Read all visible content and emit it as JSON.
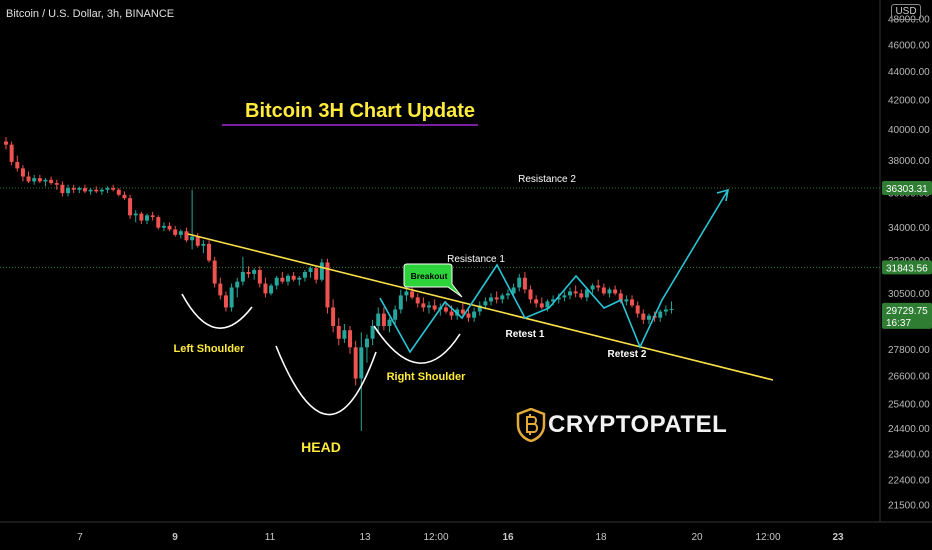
{
  "header": {
    "symbol": "Bitcoin / U.S. Dollar, 3h, BINANCE",
    "currency": "USD"
  },
  "overlay": {
    "title": "Bitcoin 3H Chart Update",
    "brand": "CRYPTOPATEL"
  },
  "colors": {
    "background": "#000000",
    "up": "#26a69a",
    "down": "#ef5350",
    "trendline": "#f9e04b",
    "zigzag": "#29c5d6",
    "resistance": "#2e7d32",
    "current_price_tag": "#2e7d32",
    "title": "#ffeb3b",
    "underline": "#7b1fa2"
  },
  "chart_data": {
    "type": "candlestick",
    "y_axis": {
      "ticks": [
        "21500.00",
        "22400.00",
        "23400.00",
        "24400.00",
        "25400.00",
        "26600.00",
        "27800.00",
        "29100.00",
        "30500.00",
        "32200.00",
        "34000.00",
        "36000.00",
        "38000.00",
        "40000.00",
        "42000.00",
        "44000.00",
        "46000.00",
        "48000.00"
      ],
      "scale": "log",
      "range": [
        20500,
        49000
      ]
    },
    "x_axis": {
      "ticks": [
        "7",
        "9",
        "11",
        "13",
        "12:00",
        "16",
        "18",
        "20",
        "12:00",
        "23"
      ],
      "bold_ticks": [
        "9",
        "16",
        "23"
      ]
    },
    "price_tags": [
      {
        "label": "36303.31",
        "value": 36303.31,
        "style": "resistance"
      },
      {
        "label": "31843.56",
        "value": 31843.56,
        "style": "resistance"
      },
      {
        "label": "29729.75",
        "sublabel": "16:37",
        "value": 29729.75,
        "style": "current"
      }
    ],
    "horizontal_levels": [
      {
        "label": "Resistance 2",
        "value": 36303.31
      },
      {
        "label": "Resistance 1",
        "value": 31843.56
      }
    ],
    "annotations": {
      "left_shoulder": "Left Shoulder",
      "head": "HEAD",
      "right_shoulder": "Right Shoulder",
      "breakout": "Breakout",
      "resistance1": "Resistance 1",
      "resistance2": "Resistance 2",
      "retest1": "Retest 1",
      "retest2": "Retest 2"
    },
    "candles": [
      {
        "o": 39200,
        "h": 39500,
        "l": 38700,
        "c": 39000
      },
      {
        "o": 39000,
        "h": 39200,
        "l": 37700,
        "c": 37900
      },
      {
        "o": 37900,
        "h": 38300,
        "l": 37300,
        "c": 37500
      },
      {
        "o": 37500,
        "h": 37700,
        "l": 36700,
        "c": 37000
      },
      {
        "o": 37000,
        "h": 37300,
        "l": 36600,
        "c": 36700
      },
      {
        "o": 36700,
        "h": 37100,
        "l": 36500,
        "c": 36900
      },
      {
        "o": 36900,
        "h": 37100,
        "l": 36600,
        "c": 36700
      },
      {
        "o": 36700,
        "h": 36900,
        "l": 36400,
        "c": 36800
      },
      {
        "o": 36800,
        "h": 37000,
        "l": 36500,
        "c": 36600
      },
      {
        "o": 36600,
        "h": 36800,
        "l": 36200,
        "c": 36500
      },
      {
        "o": 36500,
        "h": 36700,
        "l": 35800,
        "c": 36000
      },
      {
        "o": 36000,
        "h": 36500,
        "l": 35800,
        "c": 36300
      },
      {
        "o": 36300,
        "h": 36500,
        "l": 36000,
        "c": 36200
      },
      {
        "o": 36200,
        "h": 36400,
        "l": 36000,
        "c": 36300
      },
      {
        "o": 36300,
        "h": 36500,
        "l": 36000,
        "c": 36100
      },
      {
        "o": 36100,
        "h": 36300,
        "l": 35900,
        "c": 36200
      },
      {
        "o": 36200,
        "h": 36400,
        "l": 36000,
        "c": 36100
      },
      {
        "o": 36100,
        "h": 36300,
        "l": 35900,
        "c": 36200
      },
      {
        "o": 36200,
        "h": 36400,
        "l": 36000,
        "c": 36300
      },
      {
        "o": 36300,
        "h": 36500,
        "l": 36100,
        "c": 36200
      },
      {
        "o": 36200,
        "h": 36300,
        "l": 35800,
        "c": 35900
      },
      {
        "o": 35900,
        "h": 36100,
        "l": 35600,
        "c": 35700
      },
      {
        "o": 35700,
        "h": 35900,
        "l": 34500,
        "c": 34700
      },
      {
        "o": 34700,
        "h": 35000,
        "l": 34300,
        "c": 34800
      },
      {
        "o": 34800,
        "h": 34900,
        "l": 34200,
        "c": 34400
      },
      {
        "o": 34400,
        "h": 34800,
        "l": 34200,
        "c": 34700
      },
      {
        "o": 34700,
        "h": 34900,
        "l": 34400,
        "c": 34600
      },
      {
        "o": 34600,
        "h": 34700,
        "l": 33900,
        "c": 34000
      },
      {
        "o": 34000,
        "h": 34300,
        "l": 33800,
        "c": 34100
      },
      {
        "o": 34100,
        "h": 34300,
        "l": 33800,
        "c": 33900
      },
      {
        "o": 33900,
        "h": 34100,
        "l": 33500,
        "c": 33600
      },
      {
        "o": 33600,
        "h": 33900,
        "l": 33400,
        "c": 33800
      },
      {
        "o": 33800,
        "h": 34000,
        "l": 33200,
        "c": 33300
      },
      {
        "o": 33300,
        "h": 36200,
        "l": 32800,
        "c": 33500
      },
      {
        "o": 33500,
        "h": 33700,
        "l": 32900,
        "c": 33000
      },
      {
        "o": 33000,
        "h": 33300,
        "l": 32600,
        "c": 33100
      },
      {
        "o": 33100,
        "h": 33300,
        "l": 32100,
        "c": 32200
      },
      {
        "o": 32200,
        "h": 32400,
        "l": 30800,
        "c": 31000
      },
      {
        "o": 31000,
        "h": 31300,
        "l": 30200,
        "c": 30400
      },
      {
        "o": 30400,
        "h": 30600,
        "l": 29600,
        "c": 29800
      },
      {
        "o": 29800,
        "h": 31000,
        "l": 29600,
        "c": 30800
      },
      {
        "o": 30800,
        "h": 31300,
        "l": 30300,
        "c": 31100
      },
      {
        "o": 31100,
        "h": 32400,
        "l": 30900,
        "c": 31600
      },
      {
        "o": 31600,
        "h": 31900,
        "l": 31300,
        "c": 31500
      },
      {
        "o": 31500,
        "h": 31800,
        "l": 31200,
        "c": 31700
      },
      {
        "o": 31700,
        "h": 31900,
        "l": 30800,
        "c": 31000
      },
      {
        "o": 31000,
        "h": 31300,
        "l": 30300,
        "c": 30500
      },
      {
        "o": 30500,
        "h": 31000,
        "l": 30400,
        "c": 30900
      },
      {
        "o": 30900,
        "h": 31400,
        "l": 30700,
        "c": 31300
      },
      {
        "o": 31300,
        "h": 31600,
        "l": 31000,
        "c": 31100
      },
      {
        "o": 31100,
        "h": 31500,
        "l": 30900,
        "c": 31400
      },
      {
        "o": 31400,
        "h": 31600,
        "l": 31100,
        "c": 31200
      },
      {
        "o": 31200,
        "h": 31400,
        "l": 30900,
        "c": 31300
      },
      {
        "o": 31300,
        "h": 31700,
        "l": 31100,
        "c": 31600
      },
      {
        "o": 31600,
        "h": 31900,
        "l": 31300,
        "c": 31800
      },
      {
        "o": 31800,
        "h": 31900,
        "l": 31000,
        "c": 31200
      },
      {
        "o": 31200,
        "h": 32300,
        "l": 31100,
        "c": 32100
      },
      {
        "o": 32100,
        "h": 32300,
        "l": 29500,
        "c": 29800
      },
      {
        "o": 29800,
        "h": 30200,
        "l": 28600,
        "c": 28900
      },
      {
        "o": 28900,
        "h": 29300,
        "l": 28000,
        "c": 28300
      },
      {
        "o": 28300,
        "h": 29000,
        "l": 28100,
        "c": 28700
      },
      {
        "o": 28700,
        "h": 28900,
        "l": 27600,
        "c": 27900
      },
      {
        "o": 27900,
        "h": 28200,
        "l": 26200,
        "c": 26500
      },
      {
        "o": 26500,
        "h": 28600,
        "l": 24300,
        "c": 27900
      },
      {
        "o": 27900,
        "h": 28500,
        "l": 27200,
        "c": 28300
      },
      {
        "o": 28300,
        "h": 29200,
        "l": 28000,
        "c": 28900
      },
      {
        "o": 28900,
        "h": 29800,
        "l": 28600,
        "c": 29500
      },
      {
        "o": 29500,
        "h": 29800,
        "l": 28700,
        "c": 28900
      },
      {
        "o": 28900,
        "h": 29300,
        "l": 28600,
        "c": 29200
      },
      {
        "o": 29200,
        "h": 29900,
        "l": 29000,
        "c": 29700
      },
      {
        "o": 29700,
        "h": 30700,
        "l": 29500,
        "c": 30400
      },
      {
        "o": 30400,
        "h": 30800,
        "l": 30100,
        "c": 30600
      },
      {
        "o": 30600,
        "h": 30900,
        "l": 30200,
        "c": 30300
      },
      {
        "o": 30300,
        "h": 30500,
        "l": 29800,
        "c": 30000
      },
      {
        "o": 30000,
        "h": 30300,
        "l": 29600,
        "c": 29800
      },
      {
        "o": 29800,
        "h": 30100,
        "l": 29500,
        "c": 29900
      },
      {
        "o": 29900,
        "h": 30200,
        "l": 29600,
        "c": 29700
      },
      {
        "o": 29700,
        "h": 30000,
        "l": 29400,
        "c": 29800
      },
      {
        "o": 29800,
        "h": 30100,
        "l": 29500,
        "c": 29600
      },
      {
        "o": 29600,
        "h": 29900,
        "l": 29200,
        "c": 29400
      },
      {
        "o": 29400,
        "h": 29800,
        "l": 29200,
        "c": 29700
      },
      {
        "o": 29700,
        "h": 30000,
        "l": 29400,
        "c": 29500
      },
      {
        "o": 29500,
        "h": 29800,
        "l": 29100,
        "c": 29300
      },
      {
        "o": 29300,
        "h": 29800,
        "l": 29100,
        "c": 29600
      },
      {
        "o": 29600,
        "h": 30100,
        "l": 29400,
        "c": 29900
      },
      {
        "o": 29900,
        "h": 30300,
        "l": 29700,
        "c": 30100
      },
      {
        "o": 30100,
        "h": 30500,
        "l": 29900,
        "c": 30300
      },
      {
        "o": 30300,
        "h": 30600,
        "l": 30000,
        "c": 30200
      },
      {
        "o": 30200,
        "h": 30500,
        "l": 30000,
        "c": 30400
      },
      {
        "o": 30400,
        "h": 30700,
        "l": 30200,
        "c": 30500
      },
      {
        "o": 30500,
        "h": 31000,
        "l": 30300,
        "c": 30800
      },
      {
        "o": 30800,
        "h": 31500,
        "l": 30600,
        "c": 31300
      },
      {
        "o": 31300,
        "h": 31600,
        "l": 30500,
        "c": 30700
      },
      {
        "o": 30700,
        "h": 30900,
        "l": 30000,
        "c": 30200
      },
      {
        "o": 30200,
        "h": 30400,
        "l": 29800,
        "c": 30000
      },
      {
        "o": 30000,
        "h": 30300,
        "l": 29700,
        "c": 29800
      },
      {
        "o": 29800,
        "h": 30200,
        "l": 29600,
        "c": 30100
      },
      {
        "o": 30100,
        "h": 30400,
        "l": 29900,
        "c": 30200
      },
      {
        "o": 30200,
        "h": 30500,
        "l": 30000,
        "c": 30300
      },
      {
        "o": 30300,
        "h": 30600,
        "l": 30100,
        "c": 30400
      },
      {
        "o": 30400,
        "h": 30800,
        "l": 30200,
        "c": 30600
      },
      {
        "o": 30600,
        "h": 30900,
        "l": 30300,
        "c": 30500
      },
      {
        "o": 30500,
        "h": 30700,
        "l": 30200,
        "c": 30300
      },
      {
        "o": 30300,
        "h": 30800,
        "l": 30100,
        "c": 30700
      },
      {
        "o": 30700,
        "h": 31000,
        "l": 30500,
        "c": 30900
      },
      {
        "o": 30900,
        "h": 31200,
        "l": 30600,
        "c": 30800
      },
      {
        "o": 30800,
        "h": 31000,
        "l": 30400,
        "c": 30500
      },
      {
        "o": 30500,
        "h": 30800,
        "l": 30300,
        "c": 30700
      },
      {
        "o": 30700,
        "h": 30900,
        "l": 30400,
        "c": 30500
      },
      {
        "o": 30500,
        "h": 30700,
        "l": 30000,
        "c": 30100
      },
      {
        "o": 30100,
        "h": 30400,
        "l": 29900,
        "c": 30200
      },
      {
        "o": 30200,
        "h": 30400,
        "l": 29800,
        "c": 29900
      },
      {
        "o": 29900,
        "h": 30100,
        "l": 29300,
        "c": 29500
      },
      {
        "o": 29500,
        "h": 29700,
        "l": 29000,
        "c": 29200
      },
      {
        "o": 29200,
        "h": 29500,
        "l": 29000,
        "c": 29400
      },
      {
        "o": 29400,
        "h": 29600,
        "l": 29100,
        "c": 29300
      },
      {
        "o": 29300,
        "h": 29700,
        "l": 29100,
        "c": 29600
      },
      {
        "o": 29600,
        "h": 29900,
        "l": 29400,
        "c": 29700
      },
      {
        "o": 29700,
        "h": 30100,
        "l": 29500,
        "c": 29730
      }
    ]
  }
}
